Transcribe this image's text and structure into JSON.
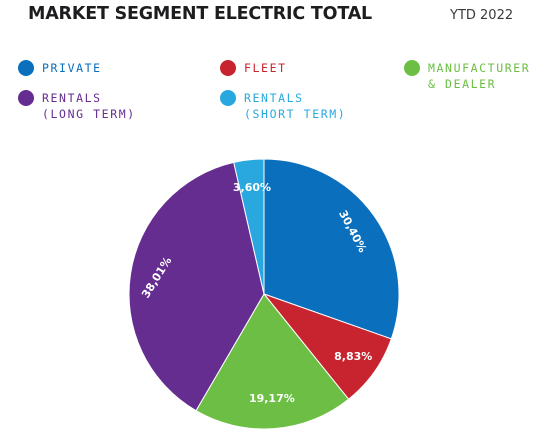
{
  "header": {
    "title": "MARKET SEGMENT ELECTRIC TOTAL",
    "subtitle": "YTD 2022"
  },
  "legend": [
    {
      "label": "PRIVATE",
      "color": "#0a6fbc"
    },
    {
      "label": "FLEET",
      "color": "#c8242f"
    },
    {
      "label": "MANUFACTURER\n& DEALER",
      "color": "#6cbf44"
    },
    {
      "label": "RENTALS\n(LONG TERM)",
      "color": "#662d91"
    },
    {
      "label": "RENTALS\n(SHORT TERM)",
      "color": "#29a8e0"
    }
  ],
  "chart_data": {
    "type": "pie",
    "title": "MARKET SEGMENT ELECTRIC TOTAL",
    "subtitle": "YTD 2022",
    "slices": [
      {
        "name": "PRIVATE",
        "value": 30.4,
        "label": "30,40%",
        "color": "#0a6fbc"
      },
      {
        "name": "FLEET",
        "value": 8.83,
        "label": "8,83%",
        "color": "#c8242f"
      },
      {
        "name": "MANUFACTURER & DEALER",
        "value": 19.17,
        "label": "19,17%",
        "color": "#6cbf44"
      },
      {
        "name": "RENTALS (LONG TERM)",
        "value": 38.01,
        "label": "38,01%",
        "color": "#662d91"
      },
      {
        "name": "RENTALS (SHORT TERM)",
        "value": 3.6,
        "label": "3,60%",
        "color": "#29a8e0"
      }
    ],
    "start": "12 o'clock",
    "direction": "clockwise",
    "legend_position": "top"
  }
}
